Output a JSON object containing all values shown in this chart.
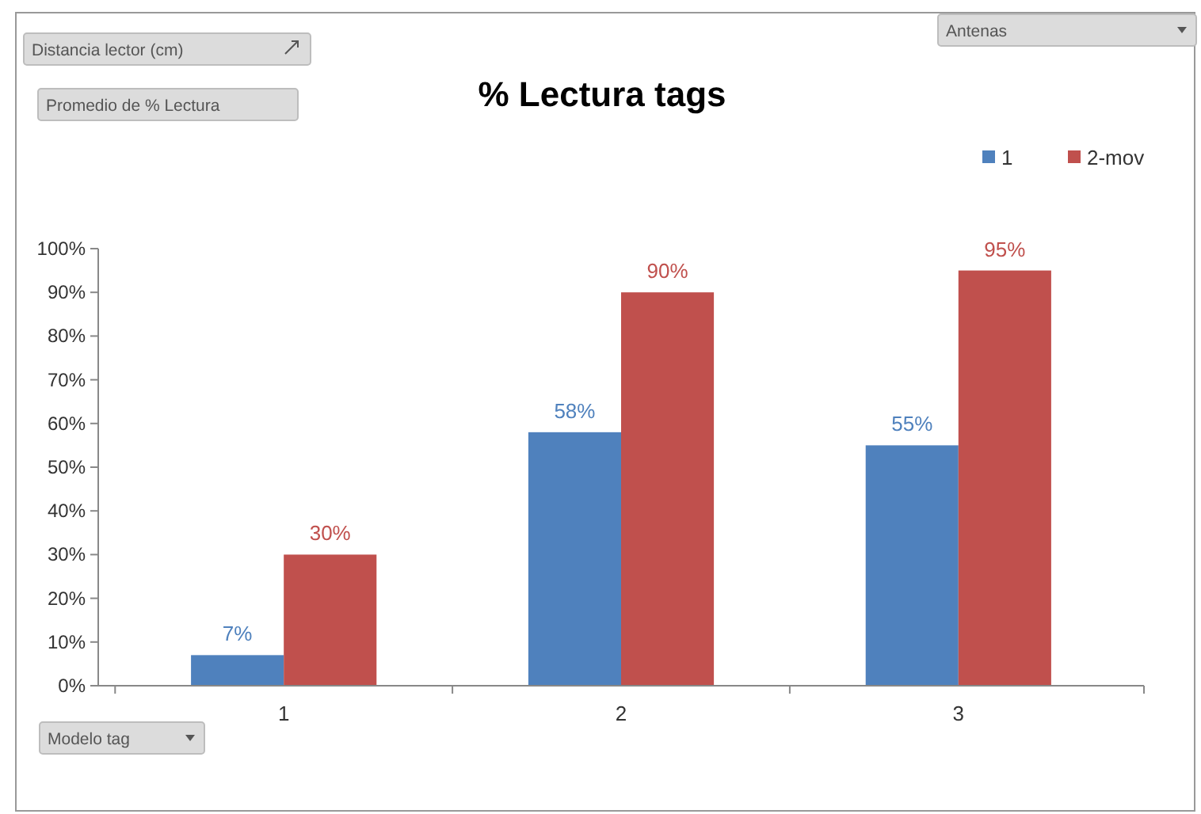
{
  "chart_data": {
    "type": "bar",
    "title": "% Lectura tags",
    "categories": [
      "1",
      "2",
      "3"
    ],
    "series": [
      {
        "name": "1",
        "color": "#4f81bd",
        "values": [
          7,
          58,
          55
        ],
        "value_labels": [
          "7%",
          "58%",
          "55%"
        ]
      },
      {
        "name": "2-mov",
        "color": "#c0504d",
        "values": [
          30,
          90,
          95
        ],
        "value_labels": [
          "30%",
          "90%",
          "95%"
        ]
      }
    ],
    "ylim": [
      0,
      100
    ],
    "yticks": [
      {
        "value": 0,
        "label": "0%"
      },
      {
        "value": 10,
        "label": "10%"
      },
      {
        "value": 20,
        "label": "20%"
      },
      {
        "value": 30,
        "label": "30%"
      },
      {
        "value": 40,
        "label": "40%"
      },
      {
        "value": 50,
        "label": "50%"
      },
      {
        "value": 60,
        "label": "60%"
      },
      {
        "value": 70,
        "label": "70%"
      },
      {
        "value": 80,
        "label": "80%"
      },
      {
        "value": 90,
        "label": "90%"
      },
      {
        "value": 100,
        "label": "100%"
      }
    ],
    "legend": "top right",
    "annotations": [
      "Distancia lector (cm)",
      "Promedio de % Lectura",
      "Antenas",
      "Modelo tag"
    ]
  }
}
